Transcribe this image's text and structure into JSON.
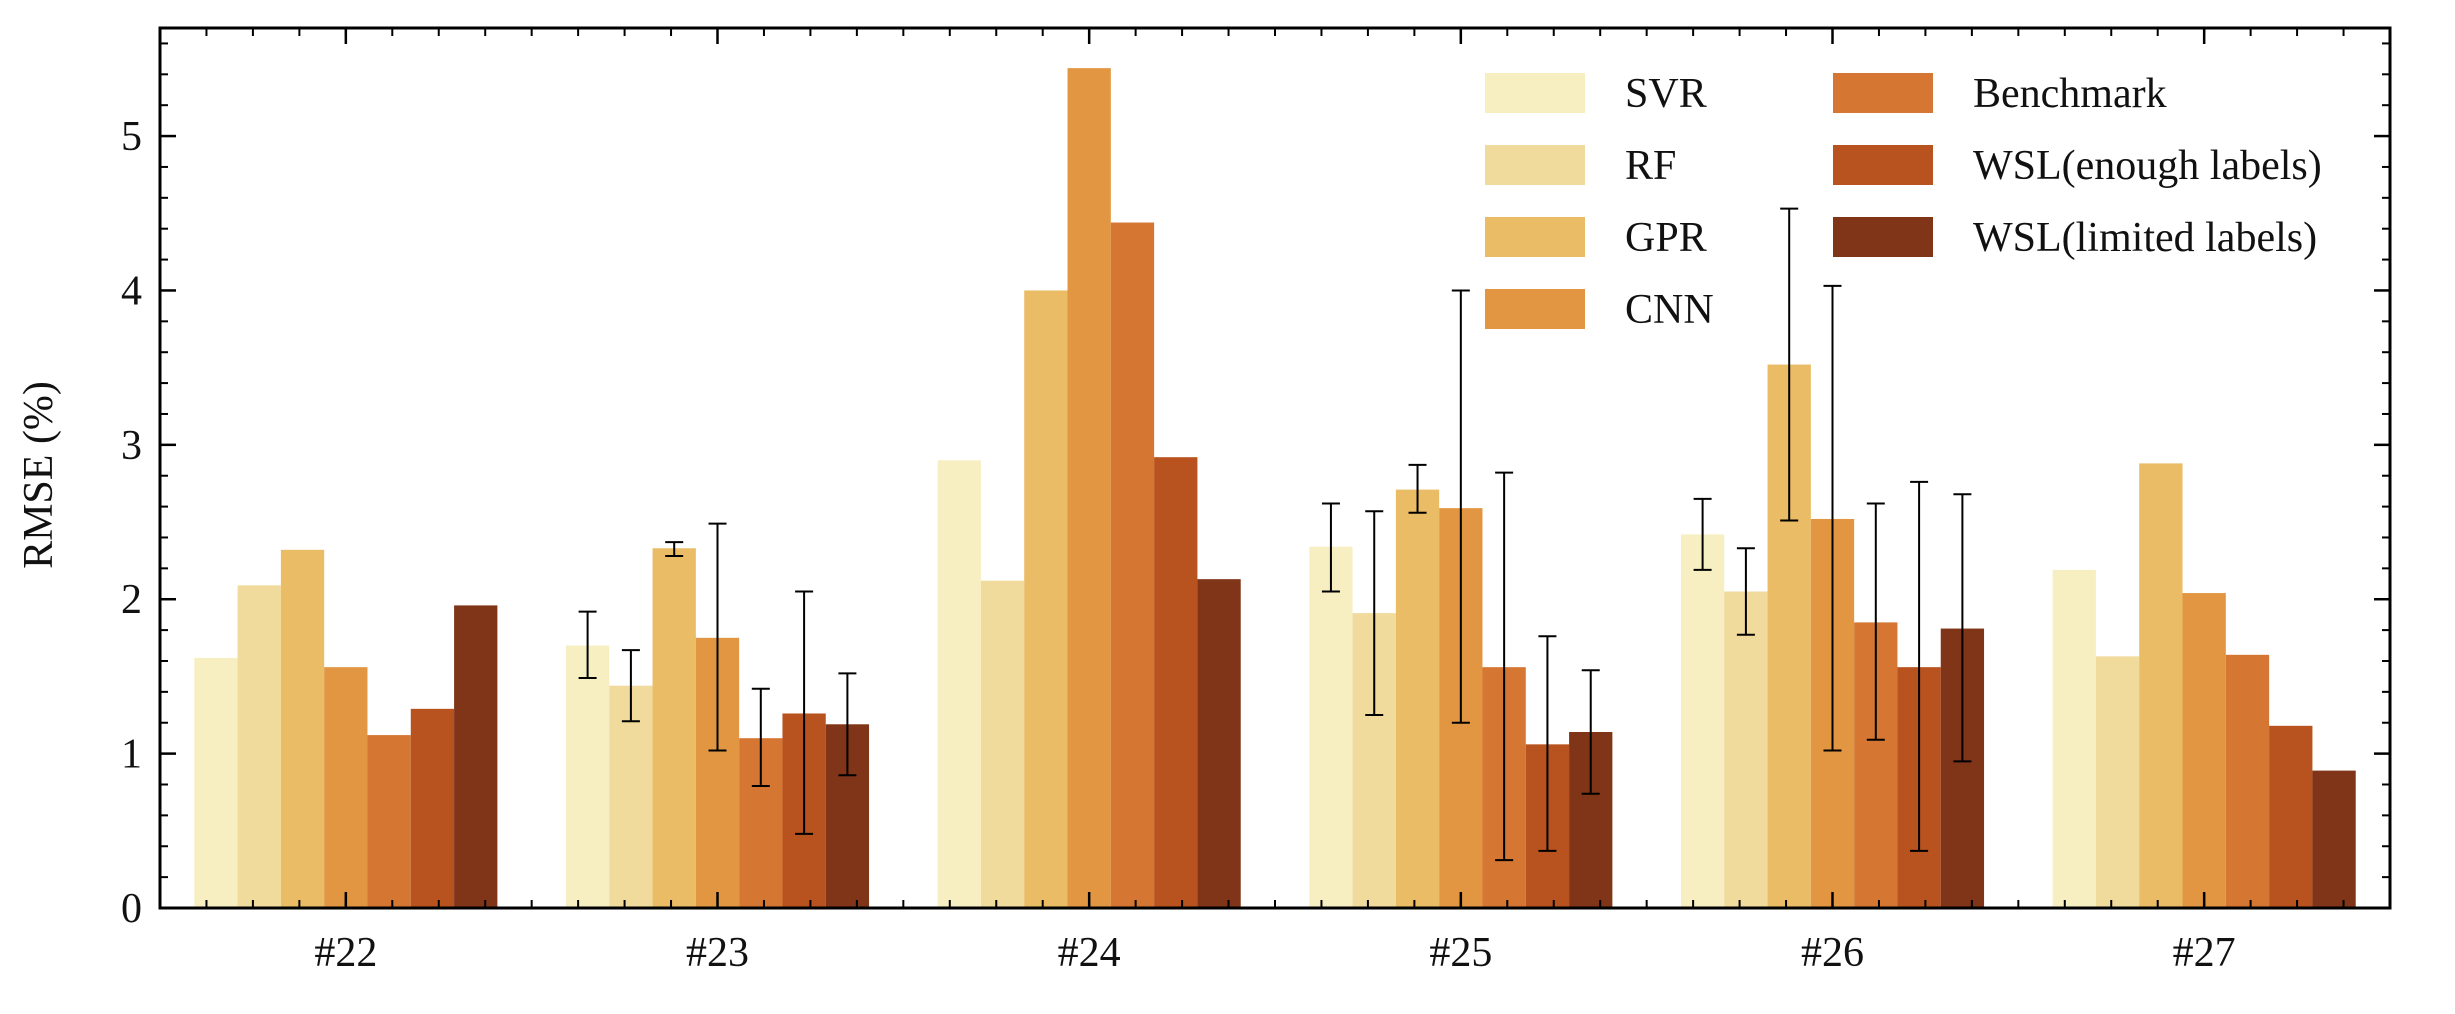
{
  "chart_data": {
    "type": "bar",
    "title": "",
    "xlabel": "",
    "ylabel": "RMSE (%)",
    "ylim": [
      0,
      5.7
    ],
    "yticks": [
      0,
      1,
      2,
      3,
      4,
      5
    ],
    "grid": false,
    "legend_position": "top-right",
    "categories": [
      "#22",
      "#23",
      "#24",
      "#25",
      "#26",
      "#27"
    ],
    "series": [
      {
        "name": "SVR",
        "color": "#F7EFC2",
        "values": [
          1.62,
          1.7,
          2.9,
          2.34,
          2.42,
          2.19
        ],
        "err_low": [
          null,
          1.49,
          null,
          2.05,
          2.19,
          null
        ],
        "err_high": [
          null,
          1.92,
          null,
          2.62,
          2.65,
          null
        ]
      },
      {
        "name": "RF",
        "color": "#F0DA9C",
        "values": [
          2.09,
          1.44,
          2.12,
          1.91,
          2.05,
          1.63
        ],
        "err_low": [
          null,
          1.21,
          null,
          1.25,
          1.77,
          null
        ],
        "err_high": [
          null,
          1.67,
          null,
          2.57,
          2.33,
          null
        ]
      },
      {
        "name": "GPR",
        "color": "#E9BC65",
        "values": [
          2.32,
          2.33,
          4.0,
          2.71,
          3.52,
          2.88
        ],
        "err_low": [
          null,
          2.28,
          null,
          2.56,
          2.51,
          null
        ],
        "err_high": [
          null,
          2.37,
          null,
          2.87,
          4.53,
          null
        ]
      },
      {
        "name": "CNN",
        "color": "#E29642",
        "values": [
          1.56,
          1.75,
          5.44,
          2.59,
          2.52,
          2.04
        ],
        "err_low": [
          null,
          1.02,
          null,
          1.2,
          1.02,
          null
        ],
        "err_high": [
          null,
          2.49,
          null,
          4.0,
          4.03,
          null
        ]
      },
      {
        "name": "Benchmark",
        "color": "#D57633",
        "values": [
          1.12,
          1.1,
          4.44,
          1.56,
          1.85,
          1.64
        ],
        "err_low": [
          null,
          0.79,
          null,
          0.31,
          1.09,
          null
        ],
        "err_high": [
          null,
          1.42,
          null,
          2.82,
          2.62,
          null
        ]
      },
      {
        "name": "WSL(enough labels)",
        "color": "#B8521F",
        "values": [
          1.29,
          1.26,
          2.92,
          1.06,
          1.56,
          1.18
        ],
        "err_low": [
          null,
          0.48,
          null,
          0.37,
          0.37,
          null
        ],
        "err_high": [
          null,
          2.05,
          null,
          1.76,
          2.76,
          null
        ]
      },
      {
        "name": "WSL(limited labels)",
        "color": "#803518",
        "values": [
          1.96,
          1.19,
          2.13,
          1.14,
          1.81,
          0.89
        ],
        "err_low": [
          null,
          0.86,
          null,
          0.74,
          0.95,
          null
        ],
        "err_high": [
          null,
          1.52,
          null,
          1.54,
          2.68,
          null
        ]
      }
    ]
  }
}
